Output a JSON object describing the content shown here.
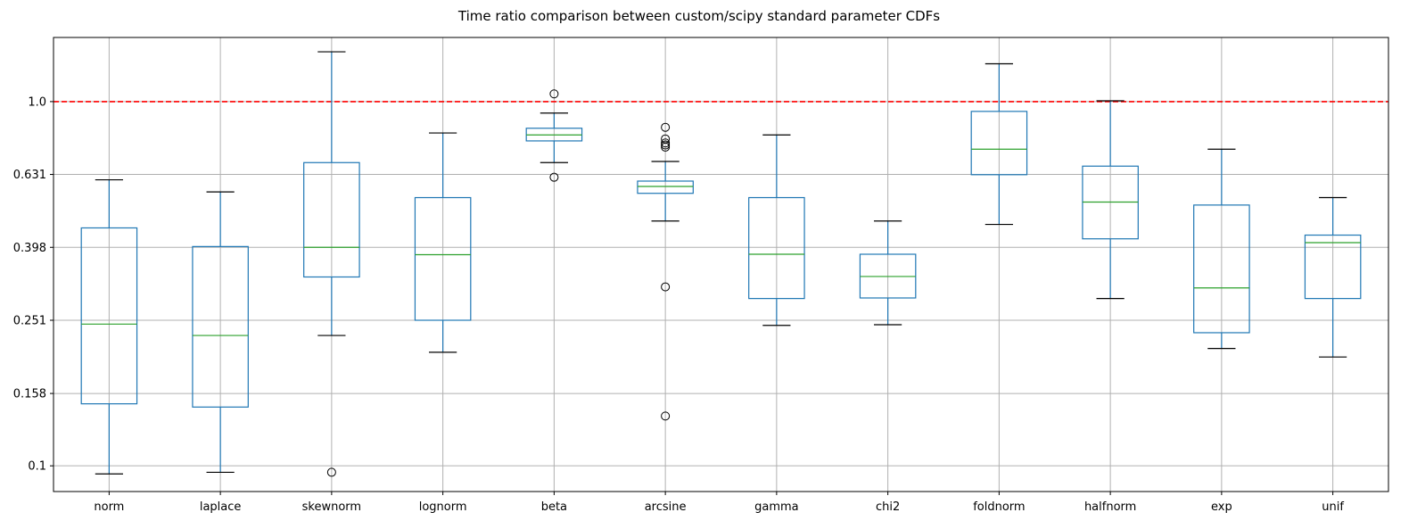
{
  "chart_data": {
    "type": "box",
    "title": "Time ratio comparison between custom/scipy standard parameter CDFs",
    "xlabel": "",
    "ylabel": "",
    "y_scale": "log",
    "ylim": [
      0.085,
      1.5
    ],
    "yticks": [
      0.1,
      0.158,
      0.251,
      0.398,
      0.631,
      1.0
    ],
    "ytick_labels": [
      "0.1",
      "0.158",
      "0.251",
      "0.398",
      "0.631",
      "1.0"
    ],
    "grid": true,
    "reference_line": {
      "y": 1.0,
      "color": "#ff0000",
      "style": "dashed"
    },
    "colors": {
      "box": "#1f77b4",
      "median": "#2ca02c",
      "cap": "#000000",
      "grid": "#b0b0b0"
    },
    "categories": [
      "norm",
      "laplace",
      "skewnorm",
      "lognorm",
      "beta",
      "arcsine",
      "gamma",
      "chi2",
      "foldnorm",
      "halfnorm",
      "exp",
      "unif"
    ],
    "boxes": [
      {
        "whislo": 0.095,
        "q1": 0.148,
        "med": 0.245,
        "q3": 0.45,
        "whishi": 0.61,
        "fliers": []
      },
      {
        "whislo": 0.096,
        "q1": 0.145,
        "med": 0.228,
        "q3": 0.4,
        "whishi": 0.565,
        "fliers": []
      },
      {
        "whislo": 0.228,
        "q1": 0.33,
        "med": 0.398,
        "q3": 0.68,
        "whishi": 1.37,
        "fliers": [
          0.096
        ]
      },
      {
        "whislo": 0.205,
        "q1": 0.251,
        "med": 0.38,
        "q3": 0.545,
        "whishi": 0.82,
        "fliers": []
      },
      {
        "whislo": 0.68,
        "q1": 0.78,
        "med": 0.81,
        "q3": 0.845,
        "whishi": 0.93,
        "fliers": [
          1.05,
          0.62
        ]
      },
      {
        "whislo": 0.47,
        "q1": 0.56,
        "med": 0.585,
        "q3": 0.605,
        "whishi": 0.685,
        "fliers": [
          0.85,
          0.79,
          0.77,
          0.76,
          0.75,
          0.31,
          0.137
        ]
      },
      {
        "whislo": 0.243,
        "q1": 0.288,
        "med": 0.381,
        "q3": 0.545,
        "whishi": 0.81,
        "fliers": []
      },
      {
        "whislo": 0.244,
        "q1": 0.289,
        "med": 0.331,
        "q3": 0.381,
        "whishi": 0.47,
        "fliers": []
      },
      {
        "whislo": 0.46,
        "q1": 0.63,
        "med": 0.74,
        "q3": 0.94,
        "whishi": 1.27,
        "fliers": []
      },
      {
        "whislo": 0.288,
        "q1": 0.42,
        "med": 0.53,
        "q3": 0.665,
        "whishi": 1.005,
        "fliers": []
      },
      {
        "whislo": 0.21,
        "q1": 0.232,
        "med": 0.308,
        "q3": 0.52,
        "whishi": 0.74,
        "fliers": []
      },
      {
        "whislo": 0.199,
        "q1": 0.288,
        "med": 0.41,
        "q3": 0.43,
        "whishi": 0.545,
        "fliers": []
      }
    ]
  }
}
